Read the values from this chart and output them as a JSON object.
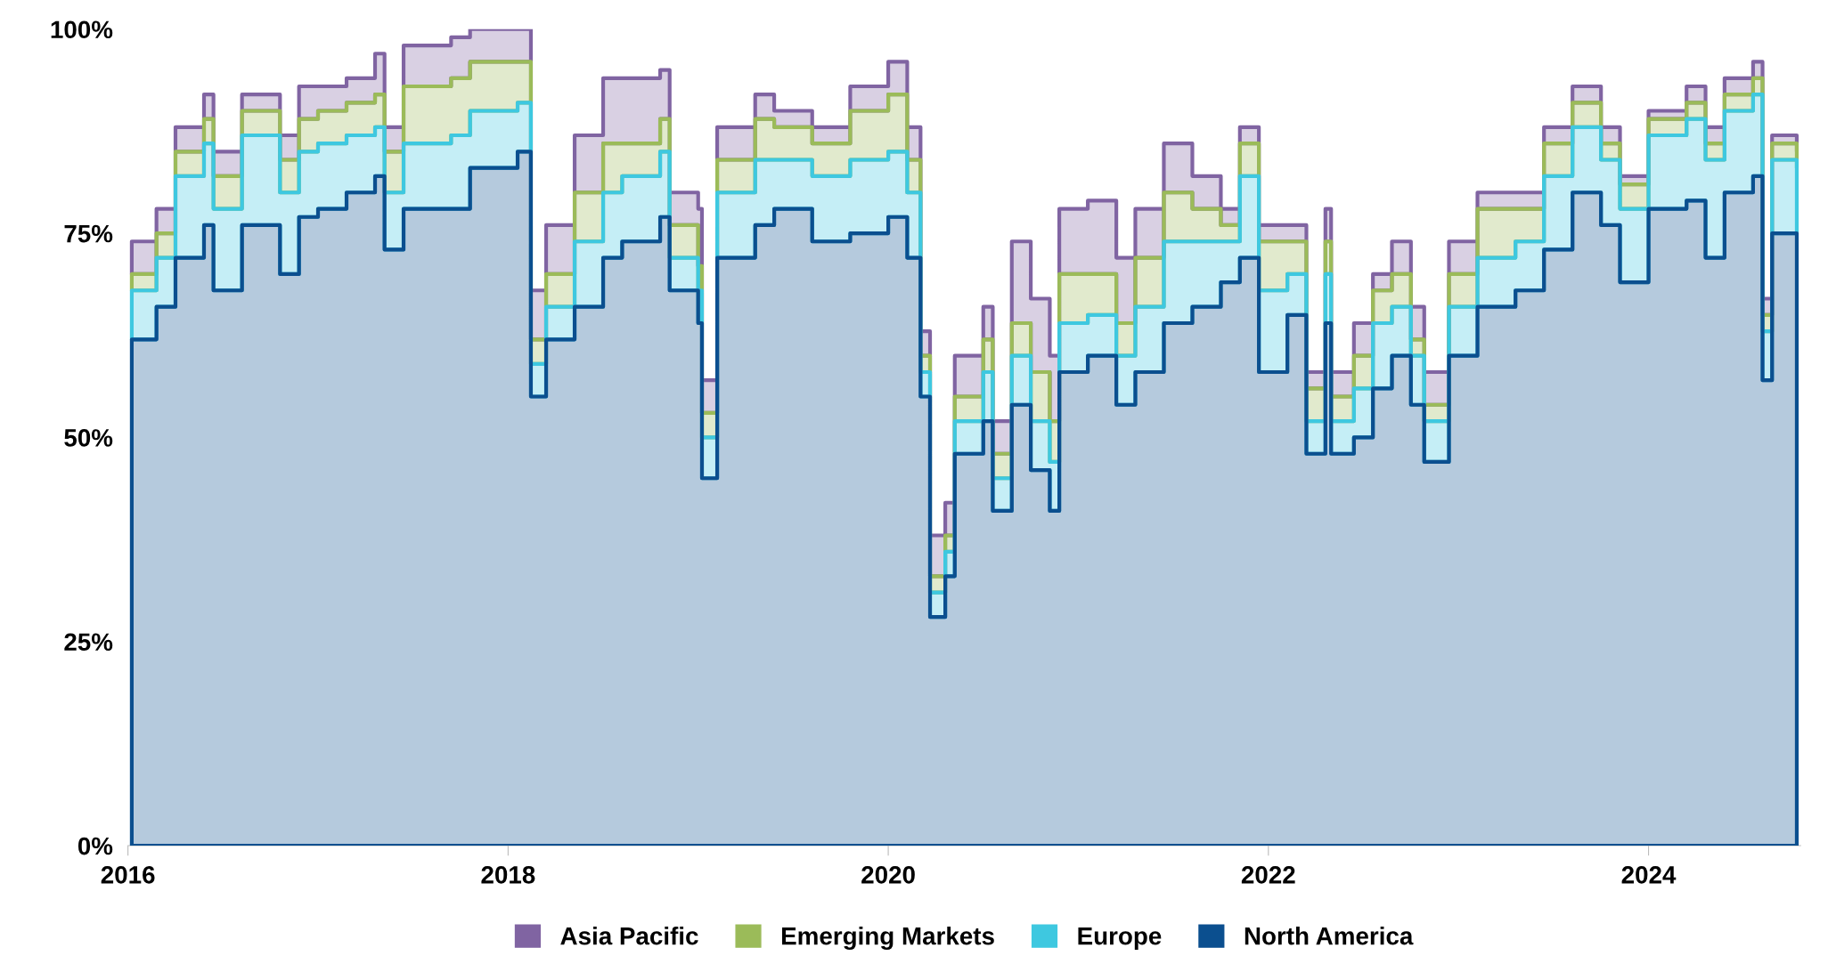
{
  "chart_data": {
    "type": "area",
    "stacked": true,
    "legend": "bottom",
    "grid": false,
    "x": [
      2016.02,
      2016.15,
      2016.25,
      2016.4,
      2016.45,
      2016.6,
      2016.8,
      2016.9,
      2017.0,
      2017.15,
      2017.3,
      2017.35,
      2017.45,
      2017.7,
      2017.8,
      2018.05,
      2018.12,
      2018.2,
      2018.35,
      2018.5,
      2018.6,
      2018.8,
      2018.85,
      2019.0,
      2019.02,
      2019.1,
      2019.3,
      2019.4,
      2019.6,
      2019.8,
      2020.0,
      2020.1,
      2020.17,
      2020.22,
      2020.3,
      2020.35,
      2020.5,
      2020.55,
      2020.65,
      2020.75,
      2020.85,
      2020.9,
      2021.05,
      2021.2,
      2021.3,
      2021.45,
      2021.6,
      2021.75,
      2021.85,
      2021.95,
      2022.1,
      2022.2,
      2022.3,
      2022.33,
      2022.45,
      2022.55,
      2022.65,
      2022.75,
      2022.82,
      2022.95,
      2023.1,
      2023.3,
      2023.45,
      2023.6,
      2023.75,
      2023.85,
      2024.0,
      2024.2,
      2024.3,
      2024.4,
      2024.55,
      2024.6,
      2024.65,
      2024.78
    ],
    "series": [
      {
        "name": "North America",
        "color": "#0b4f8f",
        "values": [
          62,
          66,
          72,
          76,
          68,
          76,
          70,
          77,
          78,
          80,
          82,
          73,
          78,
          78,
          83,
          85,
          55,
          62,
          66,
          72,
          74,
          77,
          68,
          64,
          45,
          72,
          76,
          78,
          74,
          75,
          77,
          72,
          55,
          28,
          33,
          48,
          52,
          41,
          54,
          46,
          41,
          58,
          60,
          54,
          58,
          64,
          66,
          69,
          72,
          58,
          65,
          48,
          64,
          48,
          50,
          56,
          60,
          54,
          47,
          60,
          66,
          68,
          73,
          80,
          76,
          69,
          78,
          79,
          72,
          80,
          82,
          57,
          75,
          75
        ]
      },
      {
        "name": "Europe",
        "color": "#3ec8e0",
        "values": [
          6,
          6,
          10,
          10,
          10,
          11,
          10,
          8,
          8,
          7,
          6,
          7,
          8,
          9,
          7,
          6,
          4,
          4,
          8,
          8,
          8,
          8,
          4,
          4,
          5,
          8,
          8,
          6,
          8,
          9,
          8,
          8,
          3,
          3,
          3,
          4,
          6,
          4,
          6,
          6,
          6,
          6,
          5,
          6,
          8,
          10,
          8,
          5,
          10,
          10,
          5,
          4,
          6,
          4,
          6,
          8,
          6,
          6,
          5,
          6,
          6,
          6,
          9,
          8,
          8,
          9,
          9,
          10,
          12,
          10,
          10,
          6,
          9,
          8
        ]
      },
      {
        "name": "Emerging Markets",
        "color": "#9bbb59",
        "values": [
          2,
          3,
          3,
          3,
          4,
          3,
          4,
          4,
          4,
          4,
          4,
          5,
          7,
          7,
          6,
          5,
          3,
          4,
          6,
          6,
          4,
          4,
          4,
          3,
          3,
          4,
          5,
          4,
          4,
          6,
          7,
          4,
          2,
          2,
          2,
          3,
          4,
          3,
          4,
          6,
          5,
          6,
          5,
          4,
          6,
          6,
          4,
          2,
          4,
          6,
          4,
          4,
          4,
          3,
          4,
          4,
          4,
          2,
          2,
          4,
          6,
          4,
          4,
          3,
          2,
          3,
          2,
          2,
          2,
          2,
          2,
          2,
          2,
          2
        ]
      },
      {
        "name": "Asia Pacific",
        "color": "#8064a2",
        "values": [
          4,
          3,
          3,
          3,
          3,
          2,
          3,
          4,
          3,
          3,
          5,
          3,
          5,
          5,
          4,
          4,
          6,
          6,
          7,
          8,
          8,
          6,
          4,
          7,
          4,
          4,
          3,
          2,
          2,
          3,
          4,
          4,
          3,
          5,
          4,
          5,
          4,
          4,
          10,
          9,
          8,
          8,
          9,
          8,
          6,
          6,
          4,
          2,
          2,
          2,
          2,
          2,
          4,
          3,
          4,
          2,
          4,
          4,
          4,
          4,
          2,
          2,
          2,
          2,
          2,
          1,
          1,
          2,
          2,
          2,
          2,
          2,
          1,
          1
        ]
      }
    ],
    "xlim": [
      2016,
      2024.8
    ],
    "xticks": [
      2016,
      2018,
      2020,
      2022,
      2024
    ],
    "ylim": [
      0,
      100
    ],
    "yticks": [
      {
        "value": 0,
        "label": "0%"
      },
      {
        "value": 25,
        "label": "25%"
      },
      {
        "value": 50,
        "label": "50%"
      },
      {
        "value": 75,
        "label": "75%"
      },
      {
        "value": 100,
        "label": "100%"
      }
    ]
  }
}
